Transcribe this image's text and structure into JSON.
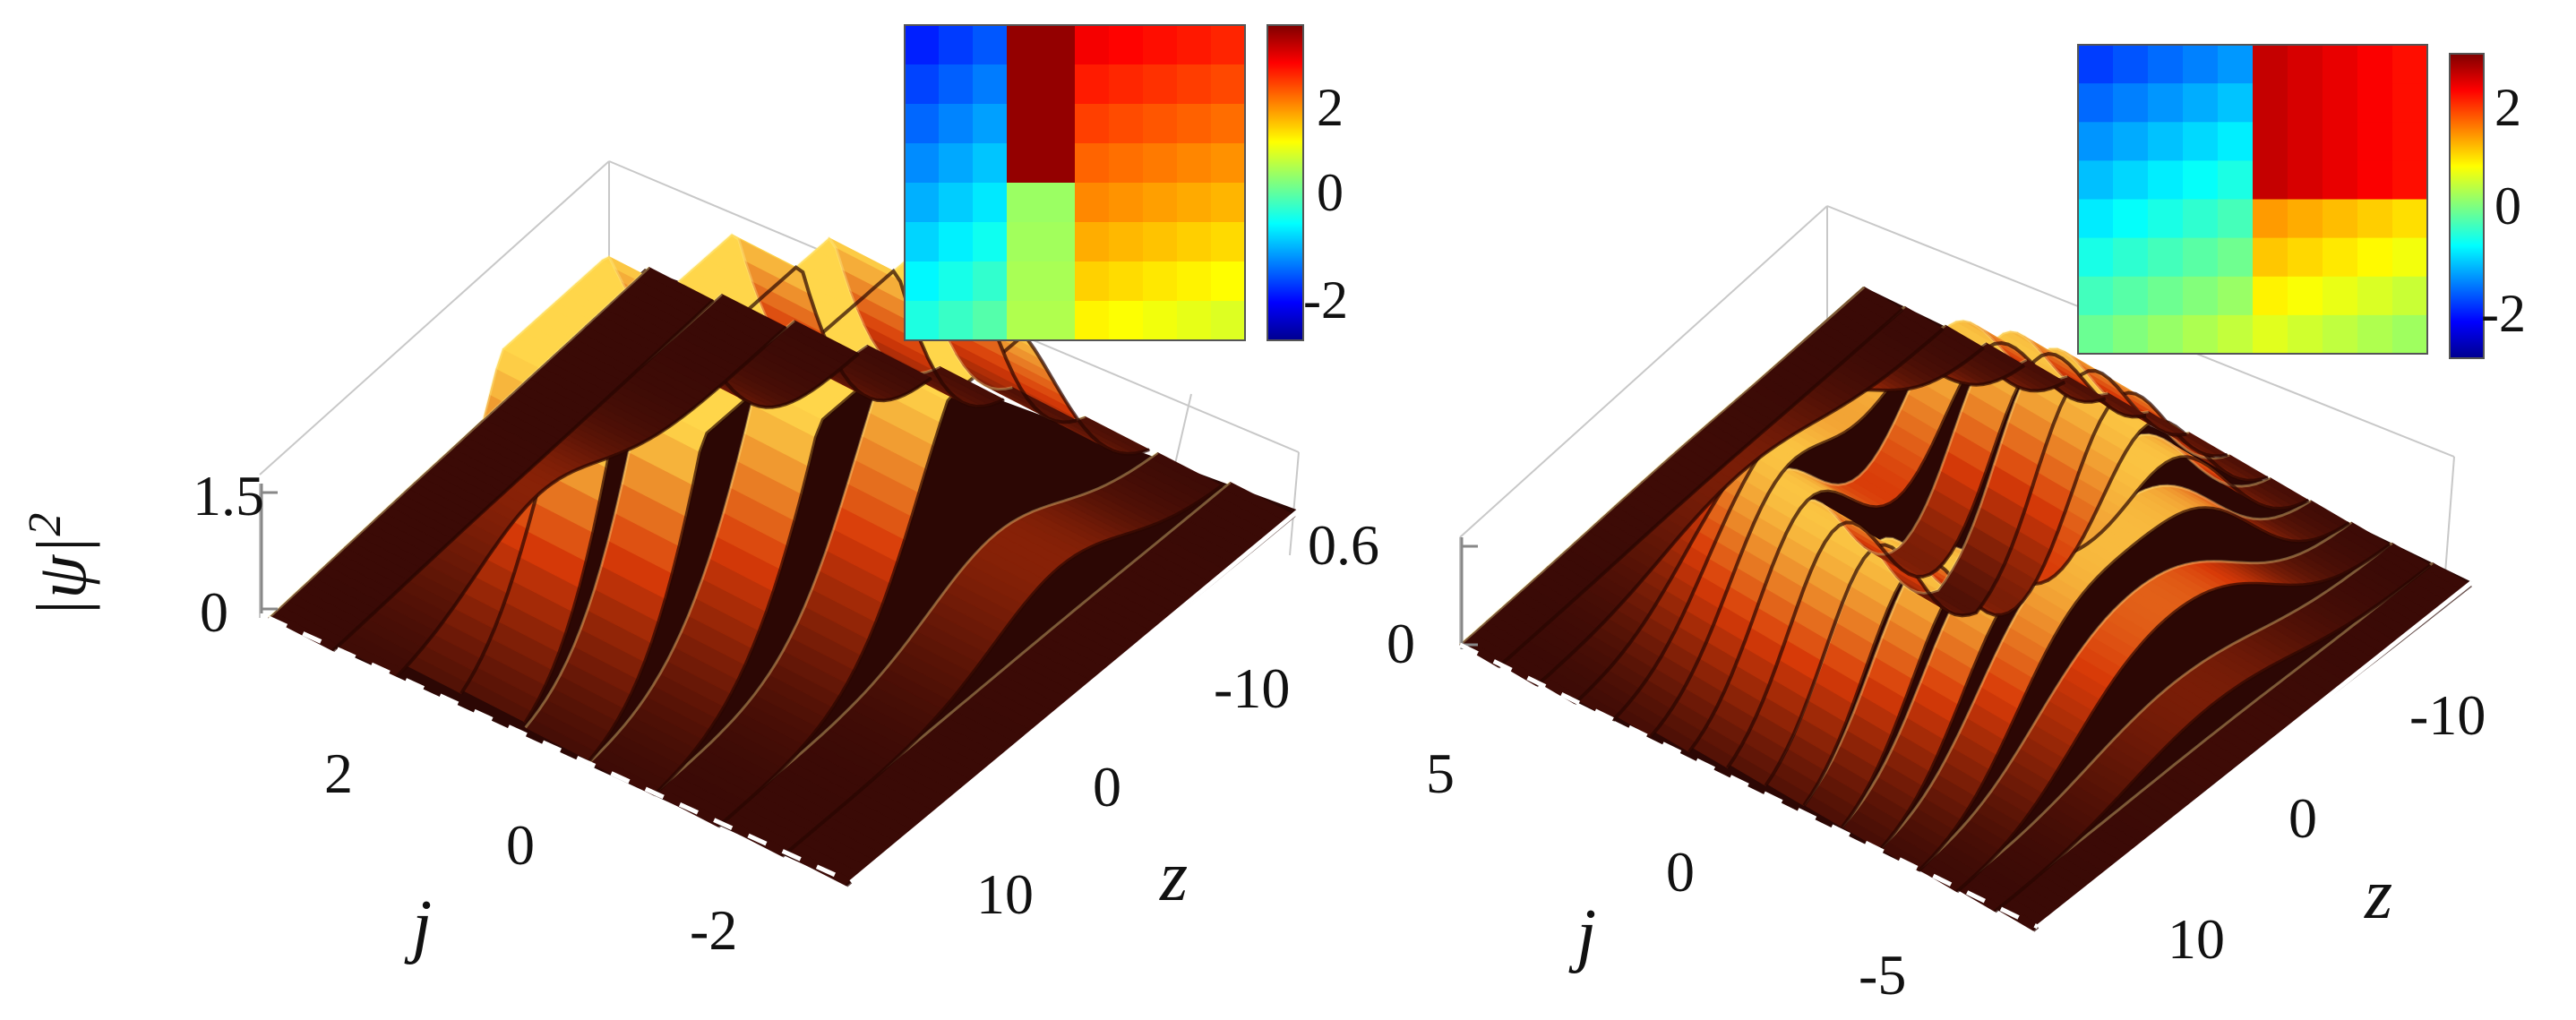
{
  "chart_data": [
    {
      "type": "surface3d",
      "zlabel": "|ψ|",
      "zlabel_sup": "2",
      "xlabel": "j",
      "ylabel": "z",
      "ztick_labels": [
        "1.5",
        "0"
      ],
      "xtick_labels": [
        "2",
        "0",
        "-2"
      ],
      "ytick_labels": [
        "-10",
        "0",
        "10"
      ],
      "ridges": 9,
      "peaks": [
        {
          "j": -1.5,
          "z": -4,
          "h": 1.5
        },
        {
          "j": -0.5,
          "z": -3,
          "h": 1.5
        },
        {
          "j": 0.5,
          "z": -1,
          "h": 1.3
        },
        {
          "j": 1.0,
          "z": 2,
          "h": 1.4
        },
        {
          "j": 1.5,
          "z": 5,
          "h": 1.2
        },
        {
          "j": 0.0,
          "z": 3,
          "h": 0.9
        }
      ],
      "inset": {
        "type": "heatmap",
        "colorbar_ticks": [
          "2",
          "0",
          "-2"
        ],
        "colorbar_range": [
          -3.14,
          3.14
        ]
      }
    },
    {
      "type": "surface3d",
      "xlabel": "j",
      "ylabel": "z",
      "ztick_labels": [
        "0.6",
        "0"
      ],
      "xtick_labels": [
        "5",
        "0",
        "-5"
      ],
      "ytick_labels": [
        "-10",
        "0",
        "10"
      ],
      "ridges": 15,
      "shape": "ring",
      "peak_height": 0.6,
      "inset": {
        "type": "heatmap",
        "colorbar_ticks": [
          "2",
          "0",
          "-2"
        ],
        "colorbar_range": [
          -3.14,
          3.14
        ]
      }
    }
  ],
  "colors": {
    "floor": "#3a0a06",
    "mid": "#d83a08",
    "top": "#ffd64a",
    "axis": "#bdbdbd"
  }
}
